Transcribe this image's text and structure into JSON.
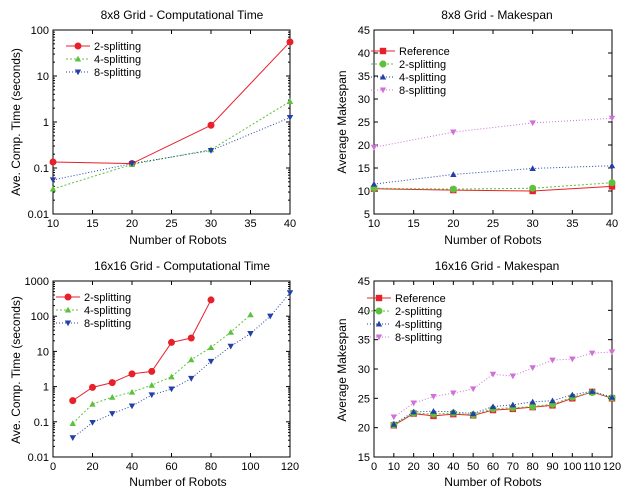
{
  "colors": {
    "red": "#e8202a",
    "green": "#5cc23c",
    "blue": "#2440a8",
    "pink": "#d070d8"
  },
  "chart_data": [
    {
      "type": "line",
      "title": "8x8 Grid - Computational Time",
      "xlabel": "Number of Robots",
      "ylabel": "Ave. Comp. Time (seconds)",
      "yscale": "log",
      "xlim": [
        10,
        40
      ],
      "ylim": [
        0.01,
        100
      ],
      "xticks": [
        10,
        15,
        20,
        25,
        30,
        35,
        40
      ],
      "yticks": [
        0.01,
        0.1,
        1,
        10,
        100
      ],
      "legend": "top-left",
      "series": [
        {
          "name": "2-splitting",
          "color": "#e8202a",
          "marker": "circle",
          "dash": "",
          "x": [
            10,
            20,
            30,
            40
          ],
          "y": [
            0.135,
            0.125,
            0.85,
            55
          ]
        },
        {
          "name": "4-splitting",
          "color": "#5cc23c",
          "marker": "triangle-up",
          "dash": "2,2",
          "x": [
            10,
            20,
            30,
            40
          ],
          "y": [
            0.035,
            0.12,
            0.25,
            2.8
          ]
        },
        {
          "name": "8-splitting",
          "color": "#2440a8",
          "marker": "triangle-down",
          "dash": "1,2",
          "x": [
            10,
            20,
            30,
            40
          ],
          "y": [
            0.055,
            0.125,
            0.24,
            1.25
          ]
        }
      ]
    },
    {
      "type": "line",
      "title": "8x8 Grid - Makespan",
      "xlabel": "Number of Robots",
      "ylabel": "Average Makespan",
      "yscale": "linear",
      "xlim": [
        10,
        40
      ],
      "ylim": [
        5,
        45
      ],
      "xticks": [
        10,
        15,
        20,
        25,
        30,
        35,
        40
      ],
      "yticks": [
        5,
        10,
        15,
        20,
        25,
        30,
        35,
        40,
        45
      ],
      "legend": "top-left",
      "series": [
        {
          "name": "Reference",
          "color": "#e8202a",
          "marker": "square",
          "dash": "",
          "x": [
            10,
            20,
            30,
            40
          ],
          "y": [
            10.5,
            10.2,
            10.0,
            11.0
          ]
        },
        {
          "name": "2-splitting",
          "color": "#5cc23c",
          "marker": "circle",
          "dash": "2,2",
          "x": [
            10,
            20,
            30,
            40
          ],
          "y": [
            10.6,
            10.4,
            10.6,
            11.8
          ]
        },
        {
          "name": "4-splitting",
          "color": "#2440a8",
          "marker": "triangle-up",
          "dash": "1,2",
          "x": [
            10,
            20,
            30,
            40
          ],
          "y": [
            11.5,
            13.6,
            14.9,
            15.5
          ]
        },
        {
          "name": "8-splitting",
          "color": "#d070d8",
          "marker": "triangle-down",
          "dash": "1,2",
          "x": [
            10,
            20,
            30,
            40
          ],
          "y": [
            19.5,
            22.8,
            24.8,
            25.8
          ]
        }
      ]
    },
    {
      "type": "line",
      "title": "16x16 Grid - Computational Time",
      "xlabel": "Number of Robots",
      "ylabel": "Ave. Comp. Time (seconds)",
      "yscale": "log",
      "xlim": [
        0,
        120
      ],
      "ylim": [
        0.01,
        1000
      ],
      "xticks": [
        0,
        20,
        40,
        60,
        80,
        100,
        120
      ],
      "yticks": [
        0.01,
        0.1,
        1,
        10,
        100,
        1000
      ],
      "legend": "top-left",
      "series": [
        {
          "name": "2-splitting",
          "color": "#e8202a",
          "marker": "circle",
          "dash": "",
          "x": [
            10,
            20,
            30,
            40,
            50,
            60,
            70,
            80
          ],
          "y": [
            0.4,
            0.95,
            1.3,
            2.3,
            2.7,
            18,
            24,
            290
          ]
        },
        {
          "name": "4-splitting",
          "color": "#5cc23c",
          "marker": "triangle-up",
          "dash": "2,2",
          "x": [
            10,
            20,
            30,
            40,
            50,
            60,
            70,
            80,
            90,
            100
          ],
          "y": [
            0.09,
            0.32,
            0.5,
            0.7,
            1.1,
            1.9,
            5.8,
            13,
            35,
            110
          ]
        },
        {
          "name": "8-splitting",
          "color": "#2440a8",
          "marker": "triangle-down",
          "dash": "1,2",
          "x": [
            10,
            20,
            30,
            40,
            50,
            60,
            70,
            80,
            90,
            100,
            110,
            120
          ],
          "y": [
            0.035,
            0.095,
            0.17,
            0.28,
            0.58,
            0.85,
            1.7,
            5.2,
            14,
            32,
            100,
            460
          ]
        }
      ]
    },
    {
      "type": "line",
      "title": "16x16 Grid - Makespan",
      "xlabel": "Number of Robots",
      "ylabel": "Average Makespan",
      "yscale": "linear",
      "xlim": [
        0,
        120
      ],
      "ylim": [
        15,
        45
      ],
      "xticks": [
        0,
        10,
        20,
        30,
        40,
        50,
        60,
        70,
        80,
        90,
        100,
        110,
        120
      ],
      "yticks": [
        15,
        20,
        25,
        30,
        35,
        40,
        45
      ],
      "legend": "top-left",
      "series": [
        {
          "name": "Reference",
          "color": "#e8202a",
          "marker": "square",
          "dash": "",
          "x": [
            10,
            20,
            30,
            40,
            50,
            60,
            70,
            80,
            90,
            100,
            110,
            120
          ],
          "y": [
            20.4,
            22.4,
            22.0,
            22.3,
            22.1,
            23.0,
            23.2,
            23.5,
            23.8,
            25.0,
            26.1,
            25.0
          ]
        },
        {
          "name": "2-splitting",
          "color": "#5cc23c",
          "marker": "circle",
          "dash": "2,2",
          "x": [
            10,
            20,
            30,
            40,
            50,
            60,
            70,
            80,
            90,
            100,
            110,
            120
          ],
          "y": [
            20.5,
            22.5,
            22.3,
            22.5,
            22.2,
            23.2,
            23.4,
            23.6,
            24.0,
            25.2,
            26.0,
            25.1
          ]
        },
        {
          "name": "4-splitting",
          "color": "#2440a8",
          "marker": "triangle-up",
          "dash": "1,2",
          "x": [
            10,
            20,
            30,
            40,
            50,
            60,
            70,
            80,
            90,
            100,
            110,
            120
          ],
          "y": [
            20.6,
            22.7,
            22.8,
            22.7,
            22.4,
            23.6,
            23.9,
            24.4,
            24.6,
            25.6,
            26.2,
            25.2
          ]
        },
        {
          "name": "8-splitting",
          "color": "#d070d8",
          "marker": "triangle-down",
          "dash": "1,2",
          "x": [
            10,
            20,
            30,
            40,
            50,
            60,
            70,
            80,
            90,
            100,
            110,
            120
          ],
          "y": [
            21.8,
            24.2,
            25.3,
            25.9,
            26.6,
            29.1,
            28.8,
            30.2,
            31.5,
            31.7,
            32.7,
            32.9
          ]
        }
      ]
    }
  ]
}
